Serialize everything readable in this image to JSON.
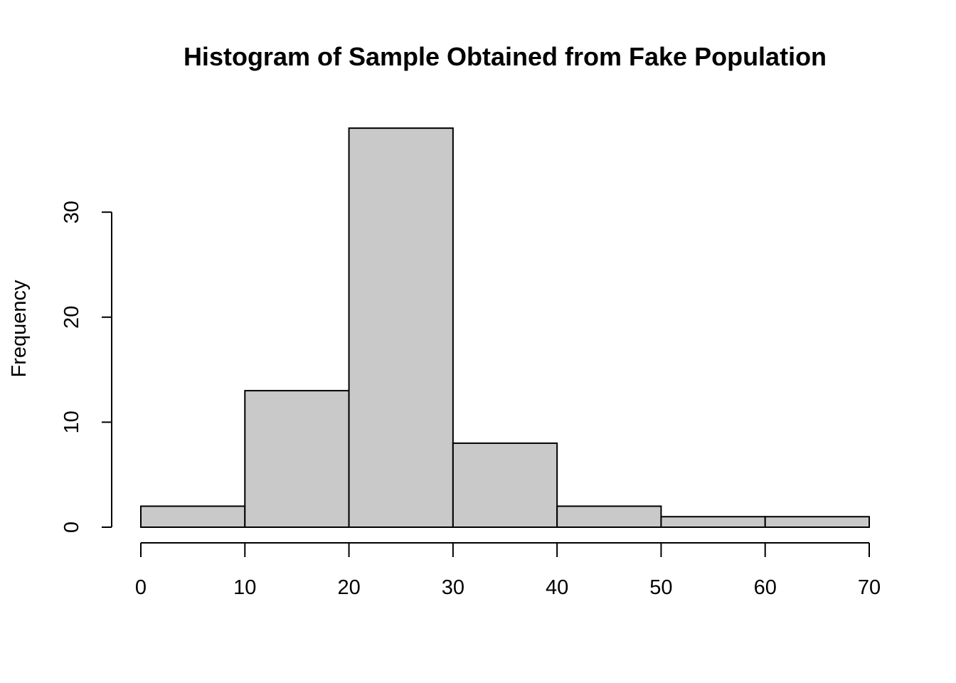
{
  "chart_data": {
    "type": "bar",
    "title": "Histogram of Sample Obtained from Fake Population",
    "xlabel": "",
    "ylabel": "Frequency",
    "bins": [
      [
        0,
        10
      ],
      [
        10,
        20
      ],
      [
        20,
        30
      ],
      [
        30,
        40
      ],
      [
        40,
        50
      ],
      [
        50,
        60
      ],
      [
        60,
        70
      ]
    ],
    "values": [
      2,
      13,
      38,
      8,
      2,
      1,
      1
    ],
    "xlim": [
      0,
      70
    ],
    "x_ticks": [
      0,
      10,
      20,
      30,
      40,
      50,
      60,
      70
    ],
    "y_ticks": [
      0,
      10,
      20,
      30
    ],
    "grid": false,
    "colors": {
      "bar_fill": "#c9c9c9",
      "bar_stroke": "#000000"
    }
  }
}
